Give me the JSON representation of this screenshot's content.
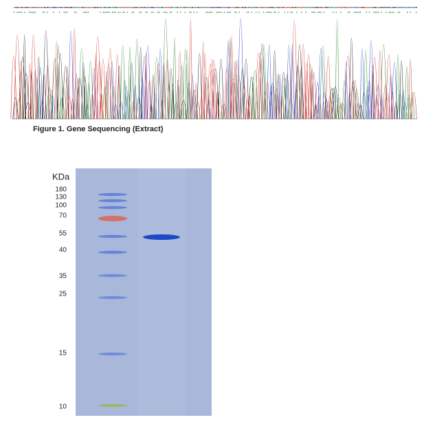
{
  "figure1": {
    "caption": "Figure 1. Gene Sequencing (Extract)"
  },
  "gel": {
    "unit": "KDa",
    "markers": [
      180,
      130,
      100,
      70,
      55,
      40,
      35,
      25,
      15,
      10
    ]
  }
}
